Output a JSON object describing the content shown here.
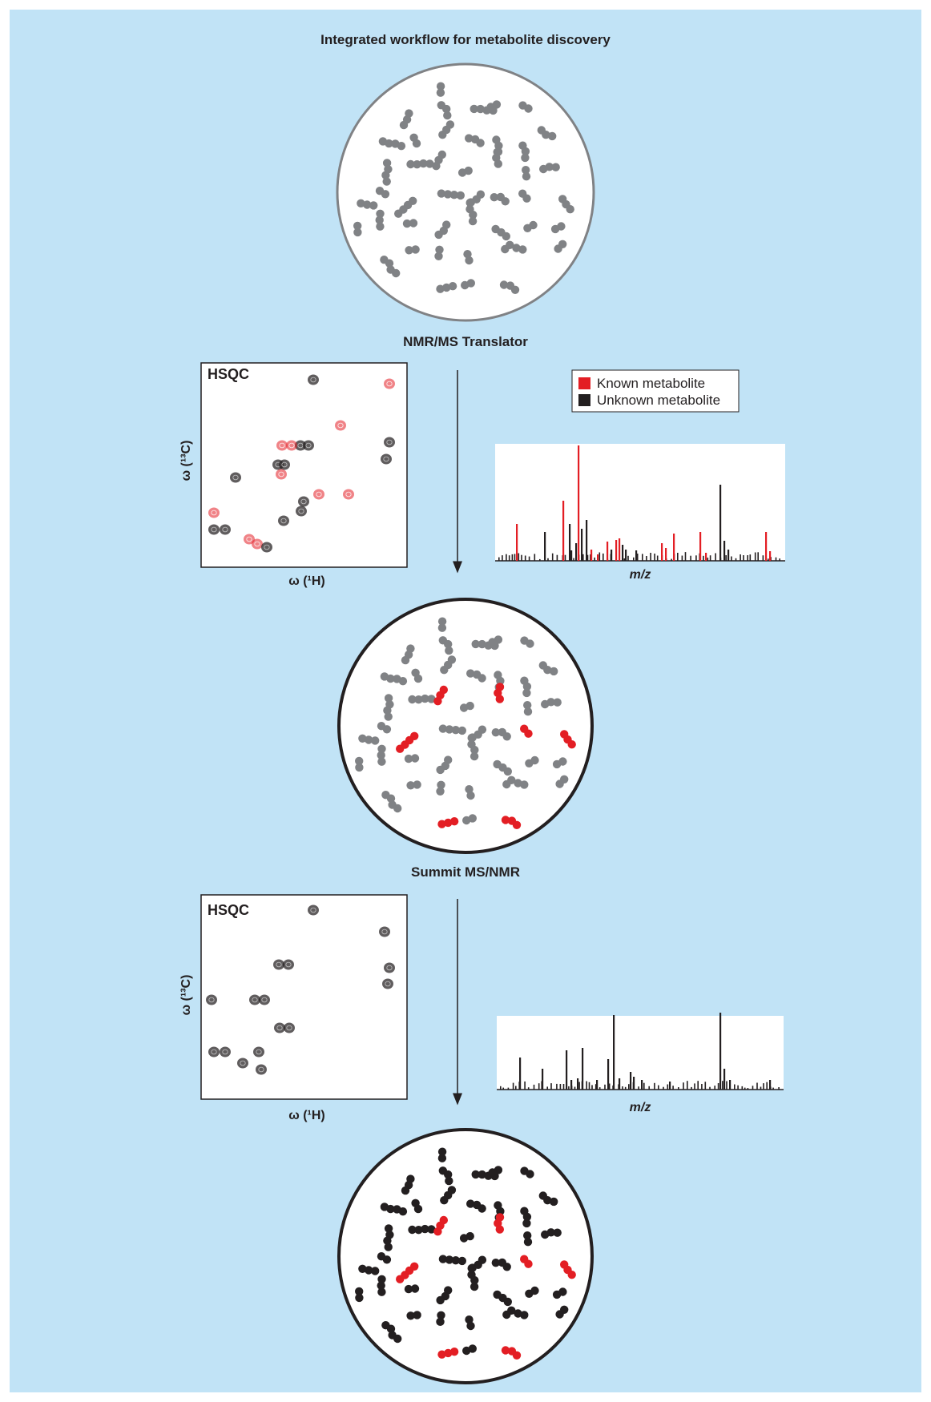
{
  "title": "Integrated workflow for metabolite discovery",
  "step1_label": "NMR/MS Translator",
  "step2_label": "Summit MS/NMR",
  "hsqc_label": "HSQC",
  "x_axis_label": "ω (¹H)",
  "y_axis_label": "ω (¹³C)",
  "mz_label": "m/z",
  "legend": [
    {
      "label": "Known metabolite",
      "color": "#e31e24"
    },
    {
      "label": "Unknown metabolite",
      "color": "#231f20"
    }
  ],
  "colors": {
    "background": "#c1e3f6",
    "known": "#e31e24",
    "unknown": "#231f20",
    "unannotated": "#808285",
    "arrow": "#231f20"
  }
}
